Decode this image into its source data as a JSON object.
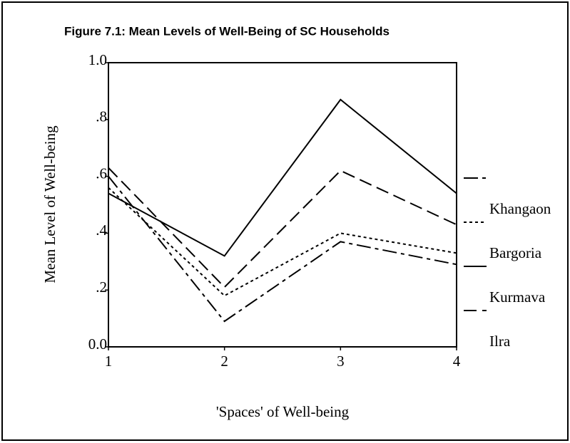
{
  "chart_data": {
    "type": "line",
    "title": "Figure 7.1: Mean Levels of Well-Being of SC Households",
    "x_label": "'Spaces' of Well-being",
    "y_label": "Mean Level of Well-being",
    "x": [
      1,
      2,
      3,
      4
    ],
    "series": [
      {
        "name": "Khangaon",
        "color": "#000000",
        "style": "dash-dot",
        "values": [
          0.6,
          0.09,
          0.37,
          0.29
        ]
      },
      {
        "name": "Bargoria",
        "color": "#000000",
        "style": "dotted",
        "values": [
          0.56,
          0.18,
          0.4,
          0.33
        ]
      },
      {
        "name": "Kurmava",
        "color": "#000000",
        "style": "solid",
        "values": [
          0.54,
          0.32,
          0.87,
          0.54
        ]
      },
      {
        "name": "Ilra",
        "color": "#000000",
        "style": "dashed",
        "values": [
          0.63,
          0.21,
          0.62,
          0.43
        ]
      }
    ],
    "xlim": [
      1,
      4
    ],
    "xticks": [
      1,
      2,
      3,
      4
    ],
    "ylim": [
      0,
      1
    ],
    "yticks": [
      {
        "value": 0,
        "label": "0.0"
      },
      {
        "value": 0.2,
        "label": ".2"
      },
      {
        "value": 0.4,
        "label": ".4"
      },
      {
        "value": 0.6,
        "label": ".6"
      },
      {
        "value": 0.8,
        "label": ".8"
      },
      {
        "value": 1,
        "label": "1.0"
      }
    ]
  }
}
